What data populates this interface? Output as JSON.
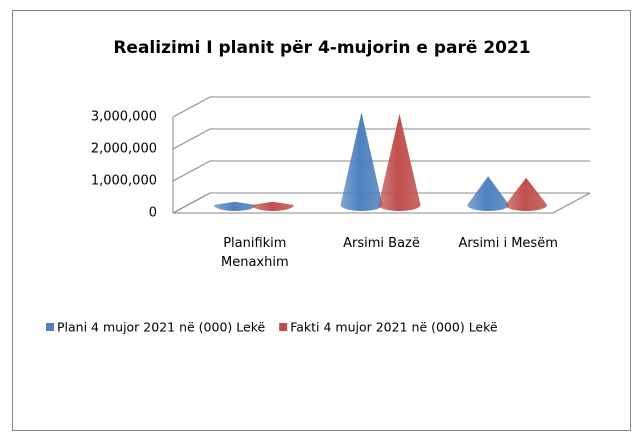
{
  "chart_data": {
    "type": "cone3d",
    "title": "Realizimi I planit për 4-mujorin e parë 2021",
    "categories": [
      "Planifikim Menaxhim",
      "Arsimi Bazë",
      "Arsimi i Mesëm"
    ],
    "series": [
      {
        "name": "Plani 4 mujor 2021 në (000) Lekë",
        "color": "#4f81bd",
        "values": [
          100000,
          2900000,
          900000
        ]
      },
      {
        "name": "Fakti 4 mujor 2021 në (000) Lekë",
        "color": "#c0504d",
        "values": [
          100000,
          2850000,
          850000
        ]
      }
    ],
    "ylim": [
      0,
      3000000
    ],
    "yticks": [
      {
        "value": 0,
        "label": "0"
      },
      {
        "value": 1000000,
        "label": "1,000,000"
      },
      {
        "value": 2000000,
        "label": "2,000,000"
      },
      {
        "value": 3000000,
        "label": "3,000,000"
      }
    ],
    "grid": true,
    "legend": "bottom"
  }
}
